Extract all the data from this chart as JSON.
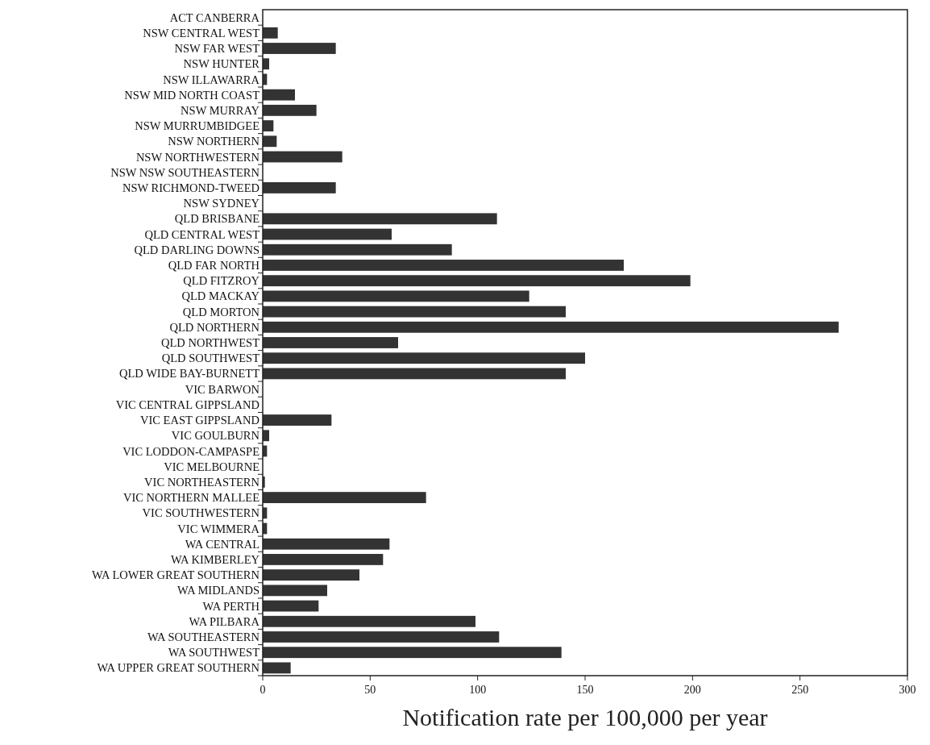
{
  "chart_data": {
    "type": "bar",
    "orientation": "horizontal",
    "xlabel": "Notification rate per 100,000 per year",
    "categories": [
      "ACT CANBERRA",
      "NSW CENTRAL WEST",
      "NSW FAR WEST",
      "NSW HUNTER",
      "NSW ILLAWARRA",
      "NSW MID NORTH COAST",
      "NSW MURRAY",
      "NSW MURRUMBIDGEE",
      "NSW NORTHERN",
      "NSW NORTHWESTERN",
      "NSW NSW SOUTHEASTERN",
      "NSW RICHMOND-TWEED",
      "NSW SYDNEY",
      "QLD BRISBANE",
      "QLD CENTRAL WEST",
      "QLD DARLING DOWNS",
      "QLD FAR NORTH",
      "QLD FITZROY",
      "QLD MACKAY",
      "QLD MORTON",
      "QLD NORTHERN",
      "QLD NORTHWEST",
      "QLD SOUTHWEST",
      "QLD WIDE BAY-BURNETT",
      "VIC BARWON",
      "VIC CENTRAL GIPPSLAND",
      "VIC EAST GIPPSLAND",
      "VIC GOULBURN",
      "VIC LODDON-CAMPASPE",
      "VIC MELBOURNE",
      "VIC NORTHEASTERN",
      "VIC NORTHERN MALLEE",
      "VIC SOUTHWESTERN",
      "VIC WIMMERA",
      "WA CENTRAL",
      "WA KIMBERLEY",
      "WA LOWER GREAT SOUTHERN",
      "WA MIDLANDS",
      "WA PERTH",
      "WA PILBARA",
      "WA SOUTHEASTERN",
      "WA SOUTHWEST",
      "WA UPPER GREAT SOUTHERN"
    ],
    "values": [
      0,
      7,
      34,
      3,
      2,
      15,
      25,
      5,
      6.5,
      37,
      0,
      34,
      0,
      109,
      60,
      88,
      168,
      199,
      124,
      141,
      268,
      63,
      150,
      141,
      0,
      0,
      32,
      3,
      2,
      0,
      1,
      76,
      2,
      2,
      59,
      56,
      45,
      30,
      26,
      99,
      110,
      139,
      13
    ],
    "color": "#333333",
    "xlim": [
      0,
      300
    ],
    "xticks": [
      0,
      50,
      100,
      150,
      200,
      250,
      300
    ],
    "grid": false
  }
}
